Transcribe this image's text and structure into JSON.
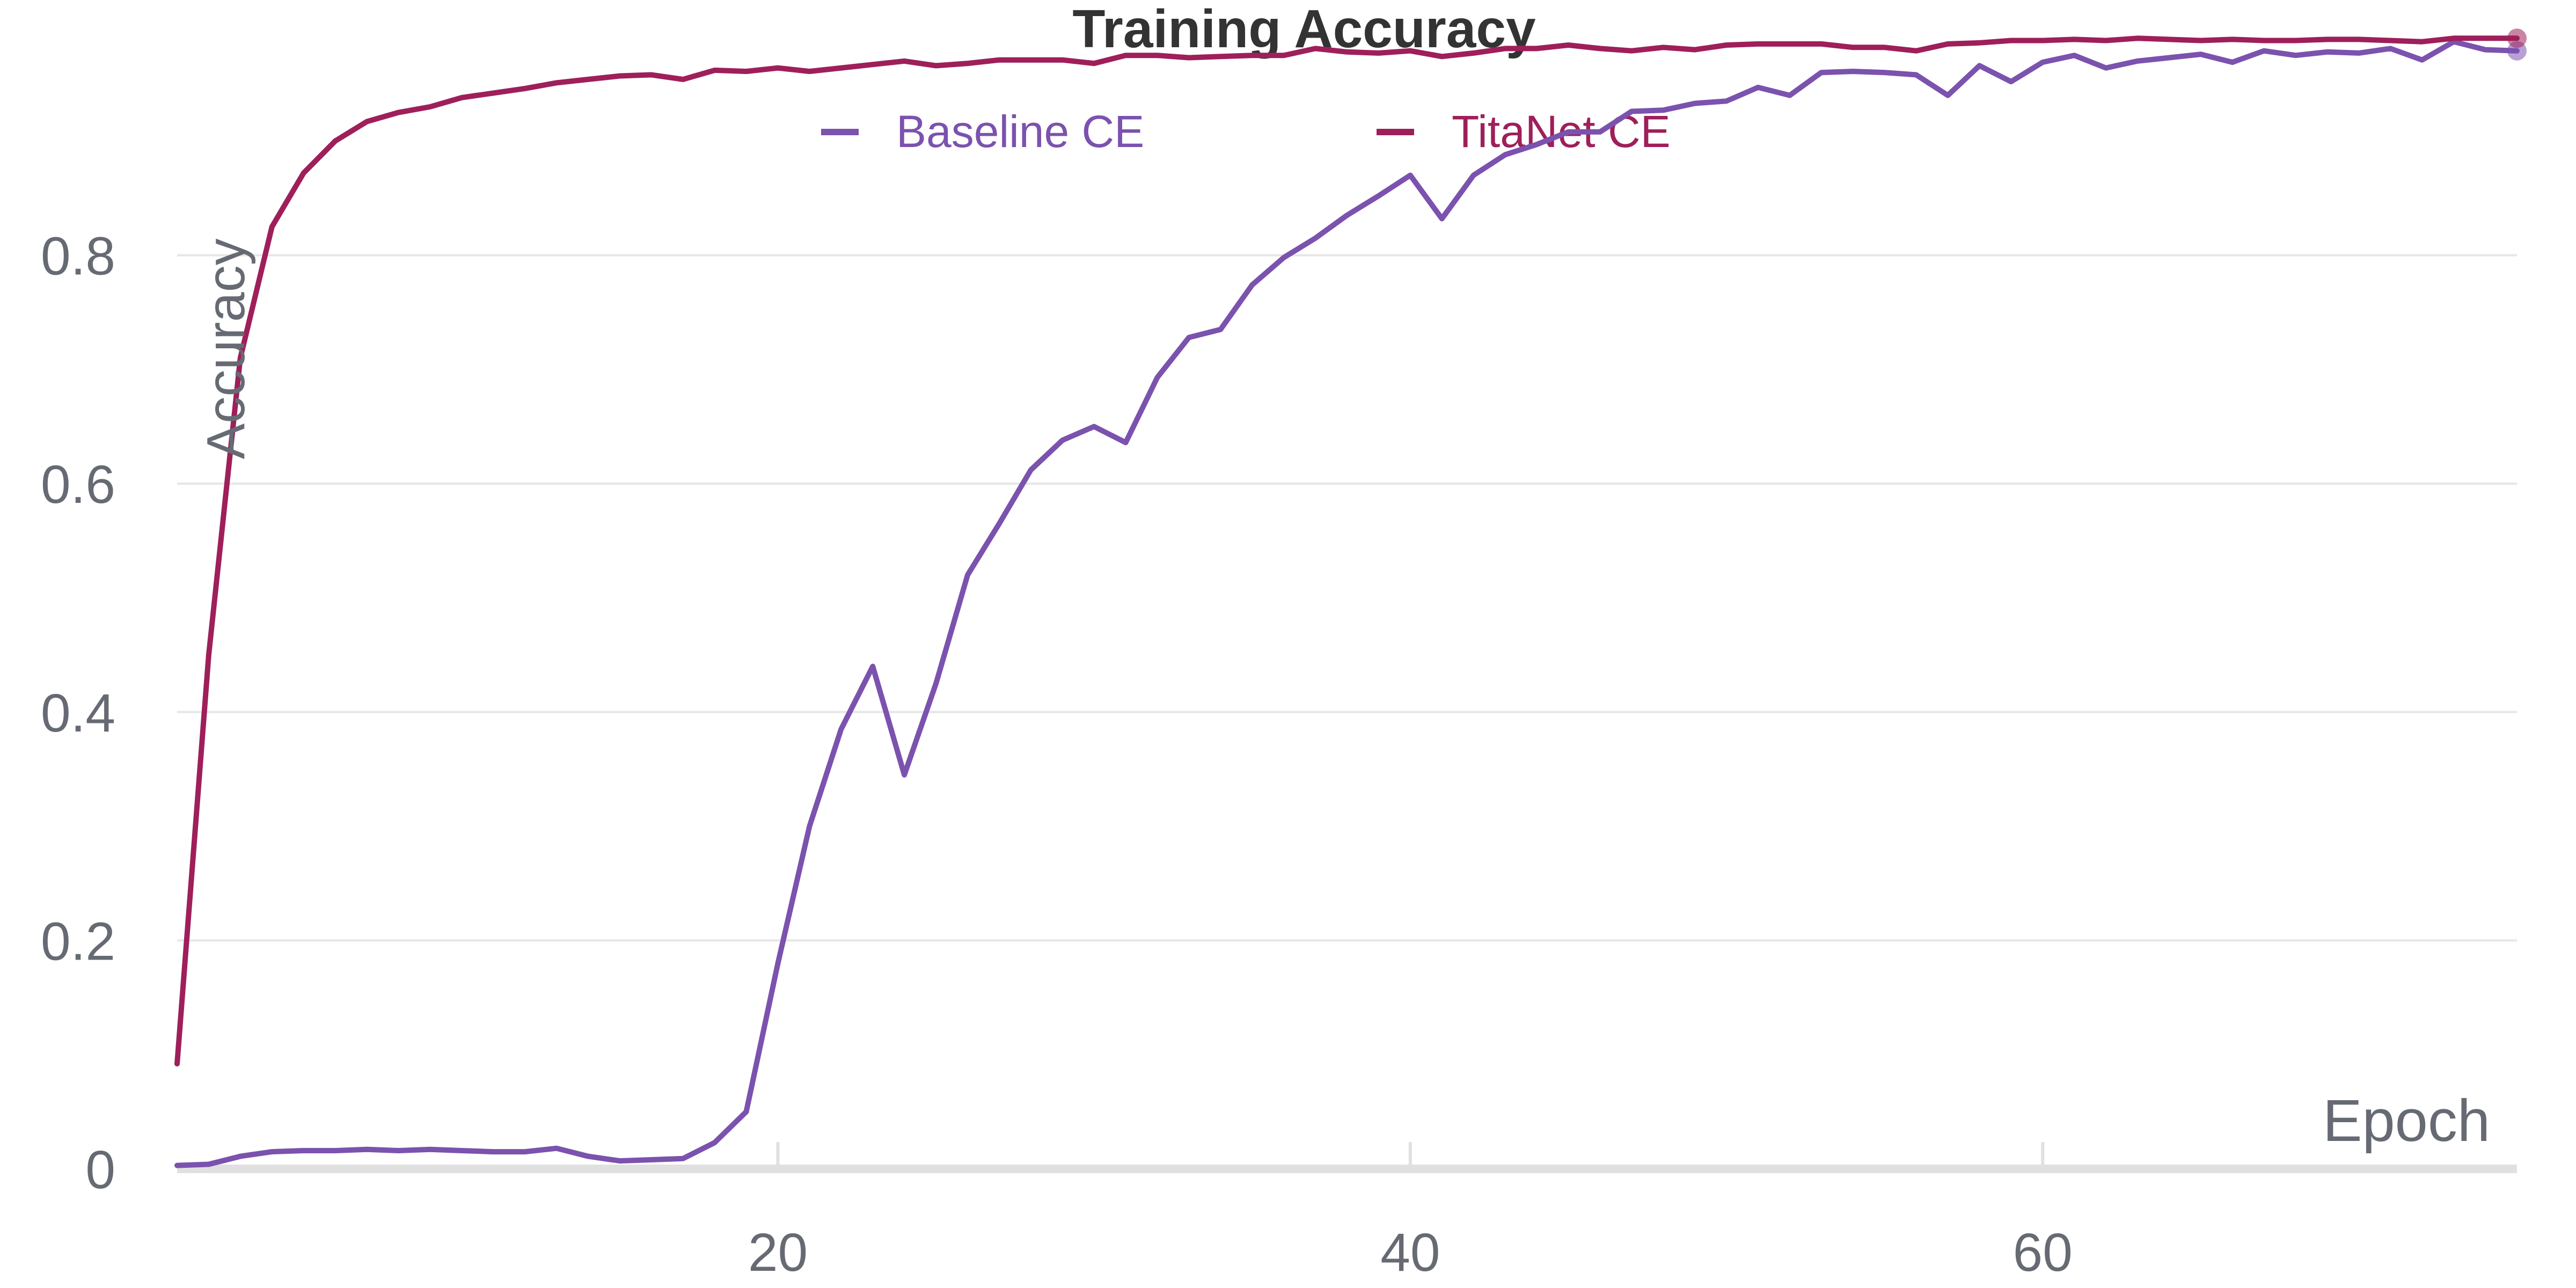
{
  "chart_data": {
    "type": "line",
    "title": "Training Accuracy",
    "xlabel": "Epoch",
    "ylabel": "Accuracy",
    "xlim": [
      1,
      75
    ],
    "ylim": [
      0,
      1.0
    ],
    "x_ticks": [
      20,
      40,
      60
    ],
    "y_ticks": [
      0,
      0.2,
      0.4,
      0.6,
      0.8
    ],
    "x_tick_labels": [
      "20",
      "40",
      "60"
    ],
    "y_tick_labels": [
      "0",
      "0.2",
      "0.4",
      "0.6",
      "0.8"
    ],
    "grid": "horizontal",
    "legend_position": "top",
    "x": [
      1,
      2,
      3,
      4,
      5,
      6,
      7,
      8,
      9,
      10,
      11,
      12,
      13,
      14,
      15,
      16,
      17,
      18,
      19,
      20,
      21,
      22,
      23,
      24,
      25,
      26,
      27,
      28,
      29,
      30,
      31,
      32,
      33,
      34,
      35,
      36,
      37,
      38,
      39,
      40,
      41,
      42,
      43,
      44,
      45,
      46,
      47,
      48,
      49,
      50,
      51,
      52,
      53,
      54,
      55,
      56,
      57,
      58,
      59,
      60,
      61,
      62,
      63,
      64,
      65,
      66,
      67,
      68,
      69,
      70,
      71,
      72,
      73,
      74,
      75
    ],
    "series": [
      {
        "name": "Baseline CE",
        "color": "#7b52ae",
        "values": [
          0.003,
          0.004,
          0.011,
          0.015,
          0.016,
          0.016,
          0.017,
          0.016,
          0.017,
          0.016,
          0.015,
          0.015,
          0.018,
          0.011,
          0.007,
          0.008,
          0.009,
          0.023,
          0.05,
          0.18,
          0.3,
          0.385,
          0.44,
          0.345,
          0.425,
          0.52,
          0.565,
          0.612,
          0.638,
          0.65,
          0.636,
          0.693,
          0.728,
          0.735,
          0.774,
          0.798,
          0.815,
          0.835,
          0.852,
          0.87,
          0.832,
          0.87,
          0.888,
          0.897,
          0.908,
          0.908,
          0.926,
          0.927,
          0.933,
          0.935,
          0.947,
          0.94,
          0.96,
          0.961,
          0.96,
          0.958,
          0.94,
          0.966,
          0.952,
          0.969,
          0.975,
          0.964,
          0.97,
          0.973,
          0.976,
          0.969,
          0.979,
          0.975,
          0.978,
          0.977,
          0.981,
          0.971,
          0.987,
          0.98,
          0.979
        ]
      },
      {
        "name": "TitaNet CE",
        "color": "#9e1f5a",
        "values": [
          0.092,
          0.45,
          0.71,
          0.825,
          0.872,
          0.9,
          0.917,
          0.925,
          0.93,
          0.938,
          0.942,
          0.946,
          0.951,
          0.954,
          0.957,
          0.958,
          0.954,
          0.962,
          0.961,
          0.964,
          0.961,
          0.964,
          0.967,
          0.97,
          0.966,
          0.968,
          0.971,
          0.971,
          0.971,
          0.968,
          0.975,
          0.975,
          0.973,
          0.974,
          0.975,
          0.975,
          0.981,
          0.978,
          0.977,
          0.979,
          0.974,
          0.977,
          0.981,
          0.981,
          0.984,
          0.981,
          0.979,
          0.982,
          0.98,
          0.984,
          0.985,
          0.985,
          0.985,
          0.982,
          0.982,
          0.979,
          0.985,
          0.986,
          0.988,
          0.988,
          0.989,
          0.988,
          0.99,
          0.989,
          0.988,
          0.989,
          0.988,
          0.988,
          0.989,
          0.989,
          0.988,
          0.987,
          0.99,
          0.99,
          0.99
        ]
      }
    ]
  }
}
